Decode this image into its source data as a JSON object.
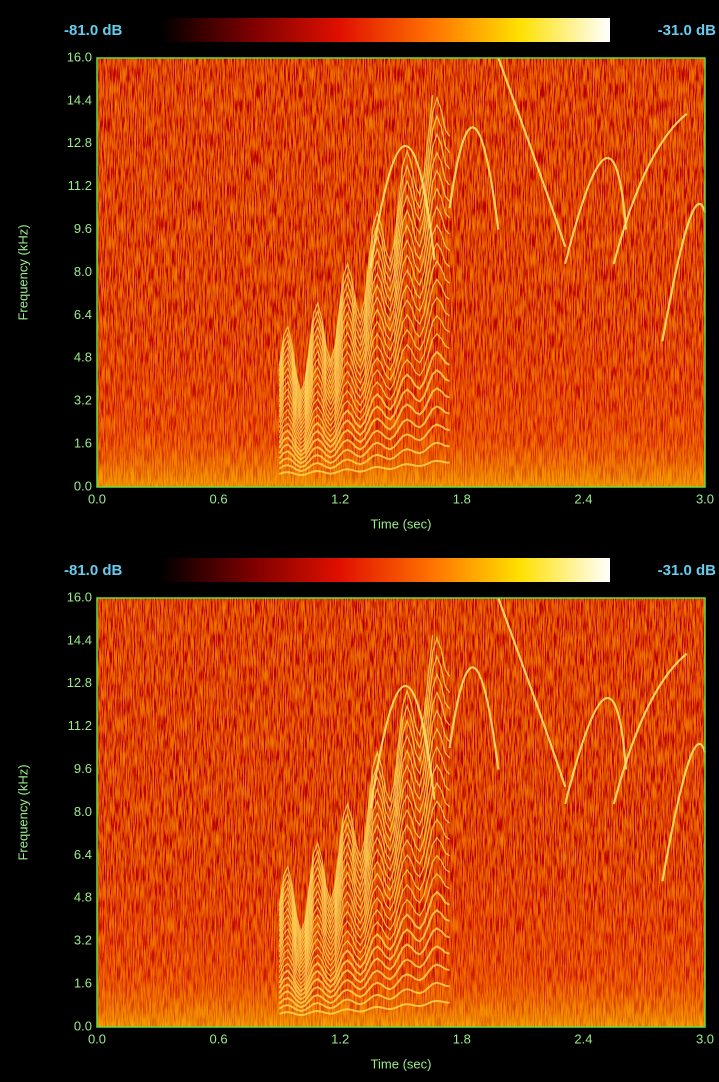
{
  "chart_data": [
    {
      "type": "spectrogram",
      "x_label": "Time (sec)",
      "y_label": "Frequency (kHz)",
      "xlim": [
        0,
        3
      ],
      "ylim": [
        0,
        16
      ],
      "xticks": [
        {
          "value": 0,
          "label": "0.0"
        },
        0.6,
        1.2,
        1.8,
        2.4,
        {
          "value": 3,
          "label": "3.0"
        }
      ],
      "yticks": [
        {
          "value": 0,
          "label": "0.0"
        },
        1.6,
        3.2,
        4.8,
        6.4,
        {
          "value": 8,
          "label": "8.0"
        },
        9.6,
        11.2,
        12.8,
        14.4,
        {
          "value": 16,
          "label": "16.0"
        }
      ],
      "clim": [
        {
          "value": -81,
          "label": "-81.0 dB"
        },
        {
          "value": -31,
          "label": "-31.0 dB"
        }
      ],
      "colormap": [
        "#000000",
        "#7a0000",
        "#e01000",
        "#ff7000",
        "#ffe000",
        "#ffffff"
      ],
      "axis_color": "#66dd44",
      "tick_color": "#99ee88",
      "clim_color": "#66ccee"
    },
    {
      "type": "spectrogram",
      "x_label": "Time (sec)",
      "y_label": "Frequency (kHz)",
      "xlim": [
        0,
        3
      ],
      "ylim": [
        0,
        16
      ],
      "xticks": [
        {
          "value": 0,
          "label": "0.0"
        },
        0.6,
        1.2,
        1.8,
        2.4,
        {
          "value": 3,
          "label": "3.0"
        }
      ],
      "yticks": [
        {
          "value": 0,
          "label": "0.0"
        },
        1.6,
        3.2,
        4.8,
        6.4,
        {
          "value": 8,
          "label": "8.0"
        },
        9.6,
        11.2,
        12.8,
        14.4,
        {
          "value": 16,
          "label": "16.0"
        }
      ],
      "clim": [
        {
          "value": -81,
          "label": "-81.0 dB"
        },
        {
          "value": -31,
          "label": "-31.0 dB"
        }
      ],
      "colormap": [
        "#000000",
        "#7a0000",
        "#e01000",
        "#ff7000",
        "#ffe000",
        "#ffffff"
      ],
      "axis_color": "#66dd44",
      "tick_color": "#99ee88",
      "clim_color": "#66ccee"
    }
  ]
}
